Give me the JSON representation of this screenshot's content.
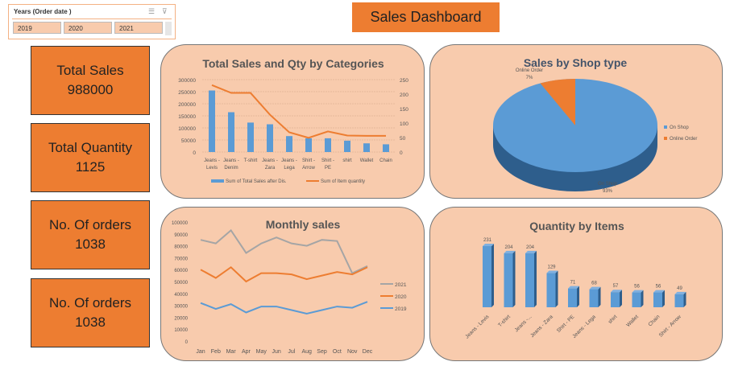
{
  "slicer": {
    "title": "Years (Order date )",
    "options": [
      "2019",
      "2020",
      "2021"
    ],
    "icons": [
      "multi-select-icon",
      "clear-filter-icon"
    ]
  },
  "header": {
    "title": "Sales Dashboard"
  },
  "kpis": [
    {
      "label": "Total Sales",
      "value": "988000"
    },
    {
      "label": "Total Quantity",
      "value": "1125"
    },
    {
      "label": "No. Of orders",
      "value": "1038"
    },
    {
      "label": "No. Of orders",
      "value": "1038"
    }
  ],
  "colors": {
    "blue": "#5B9BD5",
    "orange": "#ED7D31",
    "gray": "#A5A5A5",
    "panel": "#F8CBAD"
  },
  "chart_data": [
    {
      "type": "bar",
      "title": "Total Sales and Qty by Categories",
      "categories": [
        [
          "Jeans -",
          "Levis"
        ],
        [
          "Jeans -",
          "Denim"
        ],
        [
          "T-shirt",
          ""
        ],
        [
          "Jeans -",
          "Zara"
        ],
        [
          "Jeans -",
          "Lega"
        ],
        [
          "Shirt -",
          "Arrow"
        ],
        [
          "Shirt -",
          "PE"
        ],
        [
          "shirt",
          ""
        ],
        [
          "Wallet",
          ""
        ],
        [
          "Chain",
          ""
        ]
      ],
      "series": [
        {
          "name": "Sum of Total Sales after Dis.",
          "type": "bar",
          "axis": "left",
          "values": [
            255000,
            165000,
            122000,
            115000,
            66000,
            57000,
            57000,
            47000,
            36000,
            32000
          ]
        },
        {
          "name": "Sum of Item quantity",
          "type": "line",
          "axis": "right",
          "values": [
            231,
            204,
            204,
            129,
            68,
            49,
            71,
            57,
            56,
            56
          ]
        }
      ],
      "ylim": [
        0,
        300000
      ],
      "yticks": [
        "300000",
        "250000",
        "200000",
        "150000",
        "100000",
        "50000",
        "0"
      ],
      "y2lim": [
        0,
        250
      ],
      "y2ticks": [
        "250",
        "200",
        "150",
        "100",
        "50",
        "0"
      ],
      "legend": "bottom"
    },
    {
      "type": "pie",
      "title": "Sales by Shop type",
      "slices": [
        {
          "name": "On Shop",
          "value": 93,
          "label": "93%"
        },
        {
          "name": "Online Order",
          "value": 7,
          "label": "7%"
        }
      ],
      "legend": "right"
    },
    {
      "type": "line",
      "title": "Monthly sales",
      "x": [
        "Jan",
        "Feb",
        "Mar",
        "Apr",
        "May",
        "Jun",
        "Jul",
        "Aug",
        "Sep",
        "Oct",
        "Nov",
        "Dec"
      ],
      "series": [
        {
          "name": "2021",
          "values": [
            85000,
            82000,
            93000,
            74000,
            82000,
            87000,
            82000,
            80000,
            85000,
            84000,
            57000,
            63000
          ]
        },
        {
          "name": "2020",
          "values": [
            60000,
            53000,
            62000,
            50000,
            57000,
            57000,
            56000,
            52000,
            55000,
            58000,
            56000,
            62000
          ]
        },
        {
          "name": "2019",
          "values": [
            32000,
            27000,
            31000,
            24000,
            29000,
            29000,
            26000,
            23000,
            26000,
            29000,
            28000,
            33000
          ]
        }
      ],
      "ylim": [
        0,
        100000
      ],
      "yticks": [
        "100000",
        "90000",
        "80000",
        "70000",
        "60000",
        "50000",
        "40000",
        "30000",
        "20000",
        "10000",
        "0"
      ],
      "legend": "right"
    },
    {
      "type": "bar",
      "title": "Quantity by Items",
      "categories": [
        "Jeans - Levis",
        "T-shirt",
        "Jeans -...",
        "Jeans - Zara",
        "Shirt - PE",
        "Jeans - Lega",
        "shirt",
        "Wallet",
        "Chain",
        "Shirt - Arrow"
      ],
      "values": [
        231,
        204,
        204,
        129,
        71,
        68,
        57,
        56,
        56,
        49
      ]
    }
  ]
}
